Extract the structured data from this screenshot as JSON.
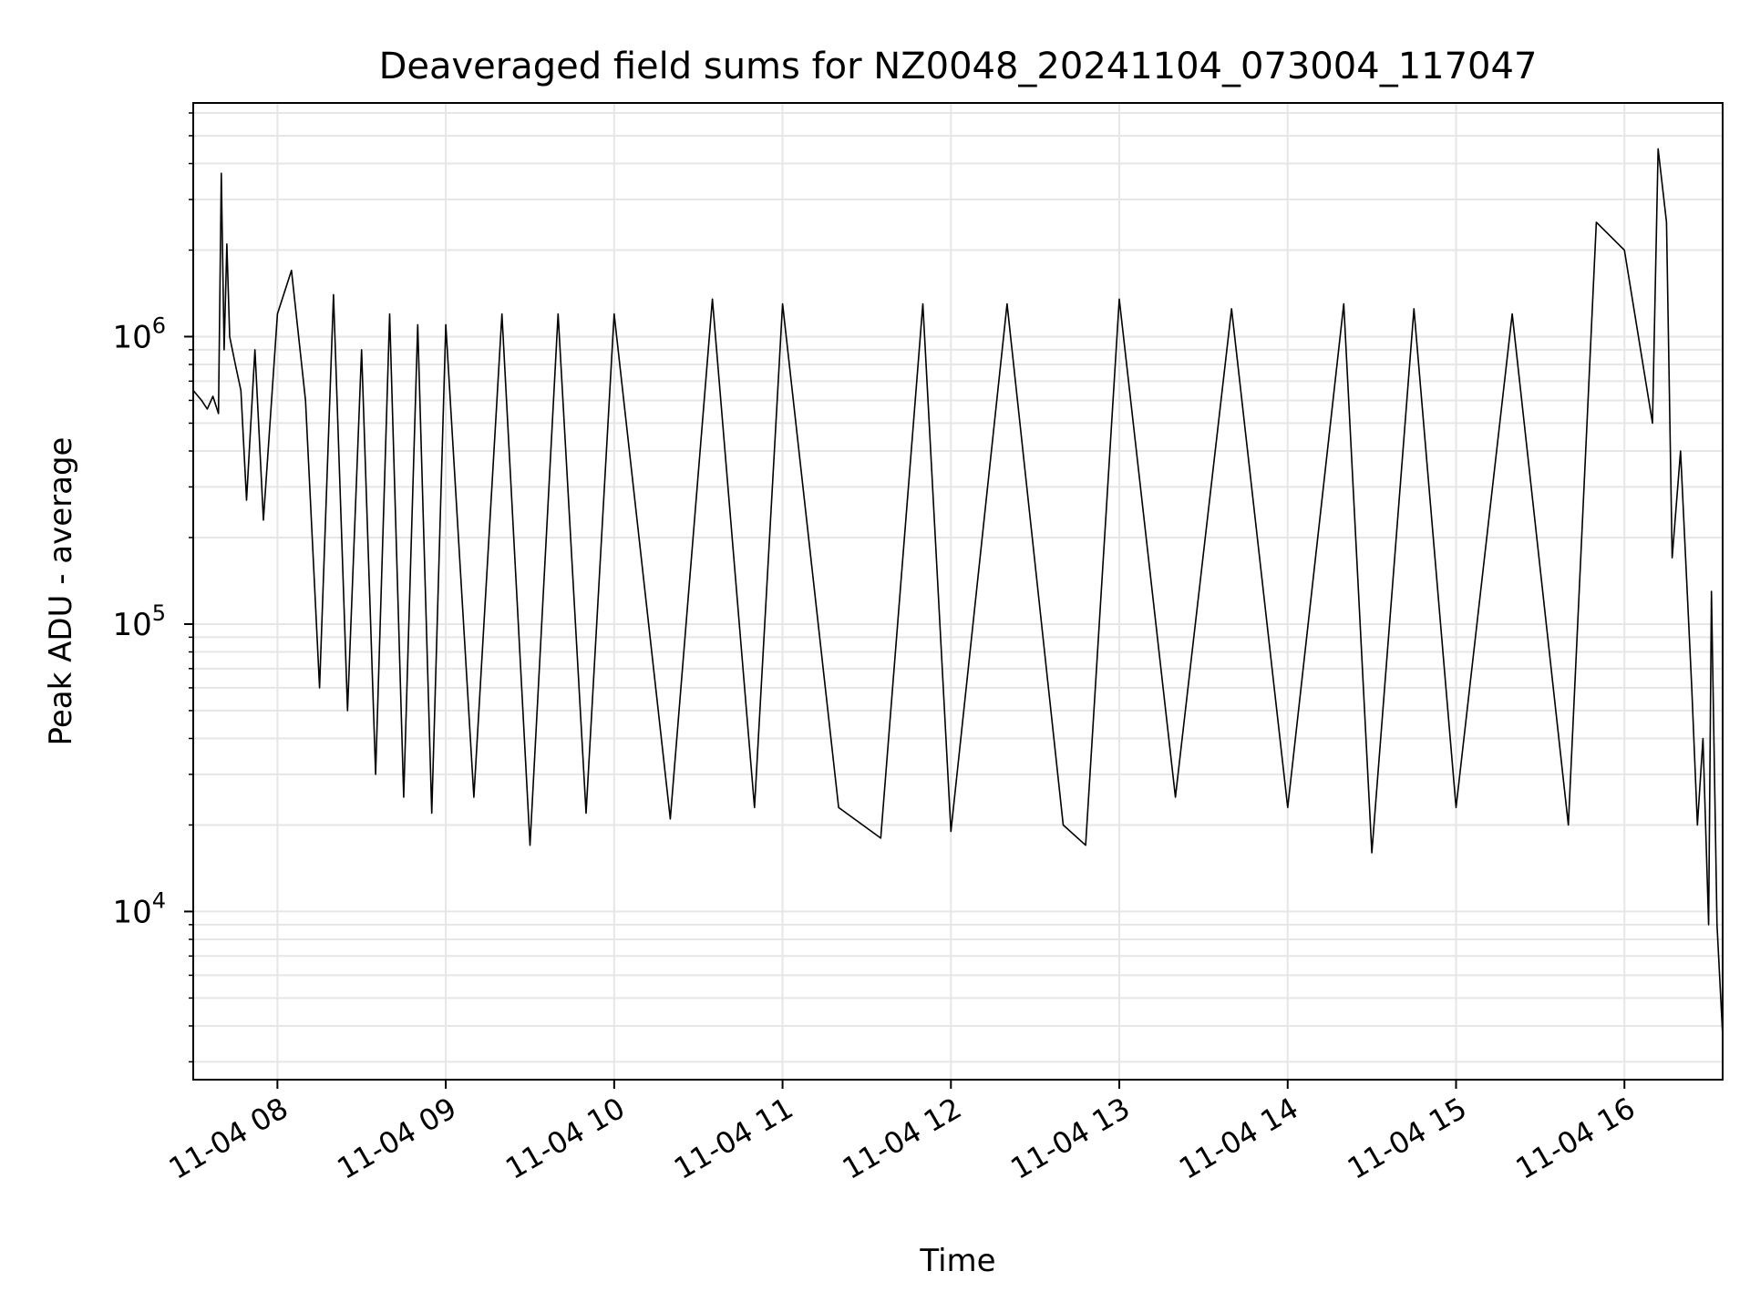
{
  "chart_data": {
    "type": "line",
    "title": "Deaveraged field sums for NZ0048_20241104_073004_117047",
    "xlabel": "Time",
    "ylabel": "Peak ADU - average",
    "yscale": "log",
    "xlim": [
      "2024-11-04 07:30",
      "2024-11-04 16:35"
    ],
    "ylim": [
      2600,
      6500000
    ],
    "grid": true,
    "grid_minor": true,
    "line_color": "#000000",
    "grid_color": "#e6e6e6",
    "x_ticks": [
      {
        "label": "11-04 08",
        "value": "2024-11-04 08:00"
      },
      {
        "label": "11-04 09",
        "value": "2024-11-04 09:00"
      },
      {
        "label": "11-04 10",
        "value": "2024-11-04 10:00"
      },
      {
        "label": "11-04 11",
        "value": "2024-11-04 11:00"
      },
      {
        "label": "11-04 12",
        "value": "2024-11-04 12:00"
      },
      {
        "label": "11-04 13",
        "value": "2024-11-04 13:00"
      },
      {
        "label": "11-04 14",
        "value": "2024-11-04 14:00"
      },
      {
        "label": "11-04 15",
        "value": "2024-11-04 15:00"
      },
      {
        "label": "11-04 16",
        "value": "2024-11-04 16:00"
      }
    ],
    "y_ticks": [
      {
        "base": "10",
        "exp": "4",
        "value": 10000
      },
      {
        "base": "10",
        "exp": "5",
        "value": 100000
      },
      {
        "base": "10",
        "exp": "6",
        "value": 1000000
      }
    ],
    "series": [
      {
        "points": [
          [
            "2024-11-04 07:30",
            650000
          ],
          [
            "2024-11-04 07:33",
            600000
          ],
          [
            "2024-11-04 07:35",
            560000
          ],
          [
            "2024-11-04 07:37",
            620000
          ],
          [
            "2024-11-04 07:39",
            540000
          ],
          [
            "2024-11-04 07:40",
            3700000
          ],
          [
            "2024-11-04 07:41",
            900000
          ],
          [
            "2024-11-04 07:42",
            2100000
          ],
          [
            "2024-11-04 07:43",
            1000000
          ],
          [
            "2024-11-04 07:45",
            800000
          ],
          [
            "2024-11-04 07:47",
            650000
          ],
          [
            "2024-11-04 07:49",
            270000
          ],
          [
            "2024-11-04 07:52",
            900000
          ],
          [
            "2024-11-04 07:55",
            230000
          ],
          [
            "2024-11-04 08:00",
            1200000
          ],
          [
            "2024-11-04 08:05",
            1700000
          ],
          [
            "2024-11-04 08:10",
            600000
          ],
          [
            "2024-11-04 08:15",
            60000
          ],
          [
            "2024-11-04 08:20",
            1400000
          ],
          [
            "2024-11-04 08:25",
            50000
          ],
          [
            "2024-11-04 08:30",
            900000
          ],
          [
            "2024-11-04 08:35",
            30000
          ],
          [
            "2024-11-04 08:40",
            1200000
          ],
          [
            "2024-11-04 08:45",
            25000
          ],
          [
            "2024-11-04 08:50",
            1100000
          ],
          [
            "2024-11-04 08:55",
            22000
          ],
          [
            "2024-11-04 09:00",
            1100000
          ],
          [
            "2024-11-04 09:10",
            25000
          ],
          [
            "2024-11-04 09:20",
            1200000
          ],
          [
            "2024-11-04 09:30",
            17000
          ],
          [
            "2024-11-04 09:40",
            1200000
          ],
          [
            "2024-11-04 09:50",
            22000
          ],
          [
            "2024-11-04 10:00",
            1200000
          ],
          [
            "2024-11-04 10:20",
            21000
          ],
          [
            "2024-11-04 10:35",
            1350000
          ],
          [
            "2024-11-04 10:50",
            23000
          ],
          [
            "2024-11-04 11:00",
            1300000
          ],
          [
            "2024-11-04 11:20",
            23000
          ],
          [
            "2024-11-04 11:35",
            18000
          ],
          [
            "2024-11-04 11:50",
            1300000
          ],
          [
            "2024-11-04 12:00",
            19000
          ],
          [
            "2024-11-04 12:20",
            1300000
          ],
          [
            "2024-11-04 12:40",
            20000
          ],
          [
            "2024-11-04 12:48",
            17000
          ],
          [
            "2024-11-04 13:00",
            1350000
          ],
          [
            "2024-11-04 13:20",
            25000
          ],
          [
            "2024-11-04 13:40",
            1250000
          ],
          [
            "2024-11-04 14:00",
            23000
          ],
          [
            "2024-11-04 14:20",
            1300000
          ],
          [
            "2024-11-04 14:30",
            16000
          ],
          [
            "2024-11-04 14:45",
            1250000
          ],
          [
            "2024-11-04 15:00",
            23000
          ],
          [
            "2024-11-04 15:20",
            1200000
          ],
          [
            "2024-11-04 15:40",
            20000
          ],
          [
            "2024-11-04 15:50",
            2500000
          ],
          [
            "2024-11-04 16:00",
            2000000
          ],
          [
            "2024-11-04 16:10",
            500000
          ],
          [
            "2024-11-04 16:12",
            4500000
          ],
          [
            "2024-11-04 16:15",
            2500000
          ],
          [
            "2024-11-04 16:17",
            170000
          ],
          [
            "2024-11-04 16:20",
            400000
          ],
          [
            "2024-11-04 16:24",
            60000
          ],
          [
            "2024-11-04 16:26",
            20000
          ],
          [
            "2024-11-04 16:28",
            40000
          ],
          [
            "2024-11-04 16:30",
            9000
          ],
          [
            "2024-11-04 16:31",
            130000
          ],
          [
            "2024-11-04 16:33",
            9000
          ],
          [
            "2024-11-04 16:35",
            3700
          ]
        ]
      }
    ]
  }
}
